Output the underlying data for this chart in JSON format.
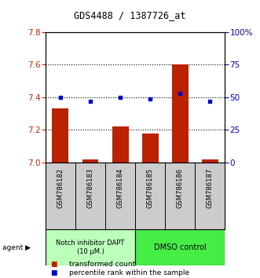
{
  "title": "GDS4488 / 1387726_at",
  "samples": [
    "GSM786182",
    "GSM786183",
    "GSM786184",
    "GSM786185",
    "GSM786186",
    "GSM786187"
  ],
  "bar_values": [
    7.33,
    7.02,
    7.22,
    7.18,
    7.6,
    7.02
  ],
  "dot_values": [
    50,
    47,
    50,
    49,
    53,
    47
  ],
  "ylim_left": [
    7.0,
    7.8
  ],
  "ylim_right": [
    0,
    100
  ],
  "yticks_left": [
    7.0,
    7.2,
    7.4,
    7.6,
    7.8
  ],
  "yticks_right": [
    0,
    25,
    50,
    75,
    100
  ],
  "bar_color": "#bb2200",
  "dot_color": "#0000cc",
  "bar_width": 0.55,
  "group0_color": "#bbffbb",
  "group1_color": "#44ee44",
  "group0_label": "Notch inhibitor DAPT\n(10 μM.)",
  "group1_label": "DMSO control",
  "agent_label": "agent",
  "legend": [
    {
      "color": "#bb2200",
      "label": "transformed count"
    },
    {
      "color": "#0000cc",
      "label": "percentile rank within the sample"
    }
  ],
  "bg_color": "#ffffff",
  "plot_bg": "#ffffff",
  "sample_bg": "#cccccc",
  "tick_color_left": "#cc2200",
  "tick_color_right": "#0000cc",
  "grid_dotted_vals": [
    7.2,
    7.4,
    7.6
  ]
}
